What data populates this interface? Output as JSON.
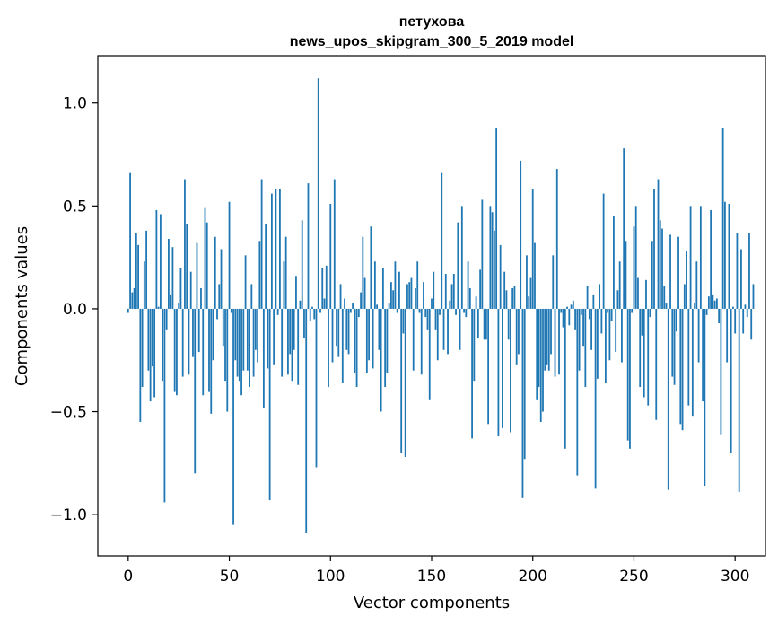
{
  "chart_data": {
    "type": "bar",
    "title": "петухова",
    "subtitle": "news_upos_skipgram_300_5_2019 model",
    "xlabel": "Vector components",
    "ylabel": "Components values",
    "xlim": [
      -15,
      315
    ],
    "ylim": [
      -1.2,
      1.23
    ],
    "xticks": [
      0,
      50,
      100,
      150,
      200,
      250,
      300
    ],
    "xtick_labels": [
      "0",
      "50",
      "100",
      "150",
      "200",
      "250",
      "300"
    ],
    "yticks": [
      -1.0,
      -0.5,
      0.0,
      0.5,
      1.0
    ],
    "ytick_labels": [
      "−1.0",
      "−0.5",
      "0.0",
      "0.5",
      "1.0"
    ],
    "grid": false,
    "bar_color": "#1f77b4",
    "values": [
      -0.02,
      0.66,
      0.08,
      0.1,
      0.37,
      0.31,
      -0.55,
      -0.38,
      0.23,
      0.38,
      -0.3,
      -0.45,
      -0.28,
      -0.43,
      0.48,
      0.01,
      0.46,
      -0.35,
      -0.94,
      -0.1,
      0.34,
      0.07,
      0.3,
      -0.4,
      -0.42,
      0.03,
      0.2,
      -0.33,
      0.63,
      0.41,
      -0.32,
      0.18,
      -0.23,
      -0.8,
      0.32,
      -0.21,
      0.1,
      -0.42,
      0.49,
      0.42,
      -0.4,
      -0.51,
      -0.25,
      0.35,
      -0.05,
      0.12,
      0.29,
      -0.18,
      -0.35,
      -0.5,
      0.52,
      -0.02,
      -1.05,
      -0.25,
      -0.33,
      -0.35,
      -0.42,
      -0.3,
      0.26,
      -0.3,
      -0.38,
      0.12,
      -0.33,
      -0.2,
      -0.26,
      0.33,
      0.63,
      -0.48,
      0.41,
      -0.29,
      -0.93,
      0.56,
      -0.27,
      0.58,
      -0.03,
      0.58,
      -0.33,
      0.23,
      0.35,
      -0.32,
      -0.22,
      -0.35,
      -0.2,
      0.16,
      -0.37,
      0.04,
      0.43,
      -0.14,
      -1.09,
      0.61,
      -0.06,
      0.01,
      -0.05,
      -0.77,
      1.12,
      -0.02,
      0.2,
      0.05,
      0.21,
      -0.38,
      0.51,
      -0.26,
      0.63,
      -0.18,
      -0.23,
      0.12,
      -0.36,
      0.05,
      -0.2,
      -0.22,
      -0.02,
      0.03,
      -0.31,
      -0.38,
      -0.04,
      0.08,
      0.35,
      0.15,
      -0.31,
      -0.25,
      0.4,
      -0.29,
      0.23,
      0.02,
      -0.2,
      -0.5,
      0.2,
      -0.38,
      -0.31,
      0.03,
      0.13,
      0.09,
      0.23,
      -0.02,
      0.18,
      -0.7,
      -0.12,
      -0.72,
      0.12,
      0.13,
      0.15,
      -0.3,
      0.1,
      0.23,
      -0.02,
      -0.32,
      0.13,
      -0.04,
      -0.1,
      -0.44,
      0.05,
      0.18,
      -0.1,
      -0.25,
      -0.03,
      0.66,
      -0.2,
      0.17,
      -0.22,
      0.04,
      0.12,
      0.17,
      -0.03,
      0.42,
      -0.2,
      0.5,
      -0.02,
      -0.04,
      0.23,
      0.1,
      -0.63,
      -0.35,
      0.06,
      -0.14,
      0.19,
      0.53,
      -0.15,
      -0.15,
      -0.56,
      0.5,
      0.47,
      0.38,
      0.88,
      -0.62,
      0.31,
      -0.58,
      0.18,
      0.09,
      -0.15,
      -0.6,
      0.1,
      0.11,
      -0.27,
      -0.22,
      0.72,
      -0.92,
      -0.73,
      0.26,
      0.06,
      0.15,
      0.58,
      0.32,
      -0.44,
      -0.38,
      -0.55,
      -0.5,
      -0.3,
      -0.27,
      -0.3,
      -0.22,
      0.26,
      -0.33,
      0.68,
      -0.32,
      -0.02,
      -0.09,
      -0.68,
      0.01,
      -0.08,
      0.02,
      0.04,
      -0.1,
      -0.81,
      -0.3,
      -0.03,
      -0.18,
      -0.38,
      0.11,
      -0.05,
      -0.2,
      0.07,
      -0.87,
      -0.34,
      0.12,
      -0.12,
      0.56,
      -0.36,
      -0.02,
      -0.25,
      -0.06,
      0.45,
      -0.21,
      0.09,
      0.23,
      -0.26,
      0.78,
      0.33,
      -0.64,
      -0.68,
      -0.02,
      0.4,
      0.5,
      0.15,
      -0.38,
      -0.13,
      -0.43,
      0.14,
      -0.47,
      -0.04,
      0.33,
      0.58,
      -0.54,
      0.63,
      0.43,
      0.39,
      0.11,
      0.03,
      -0.88,
      0.36,
      -0.33,
      -0.37,
      -0.11,
      0.35,
      -0.56,
      -0.59,
      0.12,
      0.28,
      -0.47,
      0.5,
      -0.52,
      0.03,
      0.23,
      -0.26,
      0.5,
      -0.45,
      -0.86,
      -0.03,
      0.06,
      0.48,
      0.07,
      0.04,
      0.05,
      -0.07,
      -0.61,
      0.88,
      0.52,
      -0.26,
      0.51,
      -0.7,
      0.01,
      -0.12,
      0.37,
      -0.89,
      0.29,
      -0.12,
      0.02,
      -0.04,
      0.37,
      -0.15,
      0.12
    ]
  }
}
